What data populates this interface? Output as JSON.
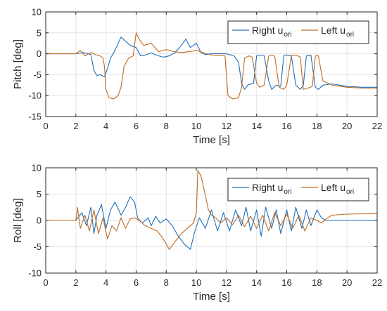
{
  "chart_data": [
    {
      "type": "line",
      "xlabel": "Time [s]",
      "ylabel": "Pitch [deg]",
      "xlim": [
        0,
        22
      ],
      "ylim": [
        -15,
        10
      ],
      "xticks": [
        0,
        2,
        4,
        6,
        8,
        10,
        12,
        14,
        16,
        18,
        20,
        22
      ],
      "yticks": [
        -15,
        -10,
        -5,
        0,
        5,
        10
      ],
      "grid": true,
      "legend": "top-right",
      "series": [
        {
          "name": "Right u_ori",
          "label_main": "Right u",
          "label_sub": "ori",
          "color": "#1f6fbf",
          "x": [
            0,
            2.0,
            2.5,
            3.0,
            3.2,
            3.4,
            3.6,
            3.9,
            4.1,
            4.3,
            4.6,
            4.8,
            5.0,
            5.3,
            5.6,
            6.0,
            6.3,
            6.6,
            7.0,
            7.4,
            7.8,
            8.2,
            8.6,
            9.0,
            9.3,
            9.6,
            10.0,
            10.3,
            10.6,
            11.0,
            11.5,
            12.0,
            12.2,
            12.5,
            12.8,
            13.0,
            13.2,
            13.4,
            13.8,
            14.0,
            14.2,
            14.5,
            14.8,
            15.0,
            15.3,
            15.6,
            15.8,
            16.0,
            16.3,
            16.6,
            16.9,
            17.1,
            17.3,
            17.6,
            17.9,
            18.1,
            18.4,
            19.0,
            20.0,
            21.0,
            22.0
          ],
          "y": [
            0,
            0,
            0.3,
            -0.2,
            -4.0,
            -5.2,
            -5.0,
            -5.5,
            -3.5,
            -1.0,
            0.8,
            2.5,
            4.0,
            3.0,
            2.0,
            1.5,
            -0.5,
            -0.3,
            0.2,
            -0.4,
            -0.8,
            -0.5,
            0.3,
            2.0,
            3.5,
            1.5,
            2.5,
            0.3,
            -0.2,
            0,
            0,
            0,
            -0.2,
            -0.5,
            -2.0,
            -7.0,
            -8.5,
            -7.5,
            -7.0,
            -0.5,
            -0.3,
            -0.4,
            -6.5,
            -8.5,
            -7.5,
            -7.8,
            -0.4,
            -0.3,
            -0.5,
            -7.5,
            -8.5,
            -7.5,
            -0.5,
            -0.3,
            -8.0,
            -8.5,
            -7.5,
            -7.2,
            -7.8,
            -8.0,
            -8.0
          ]
        },
        {
          "name": "Left u_ori",
          "label_main": "Left u",
          "label_sub": "ori",
          "color": "#c06a1f",
          "x": [
            0,
            2.0,
            2.3,
            2.6,
            3.0,
            3.3,
            3.6,
            3.8,
            3.9,
            4.0,
            4.2,
            4.5,
            4.8,
            5.0,
            5.2,
            5.5,
            5.8,
            6.0,
            6.2,
            6.5,
            7.0,
            7.5,
            8.0,
            8.5,
            9.0,
            9.5,
            10.0,
            10.5,
            11.0,
            11.5,
            11.9,
            12.1,
            12.4,
            12.8,
            13.0,
            13.2,
            13.5,
            13.7,
            14.0,
            14.2,
            14.5,
            14.8,
            15.0,
            15.2,
            15.5,
            15.8,
            16.0,
            16.3,
            16.6,
            16.9,
            17.1,
            17.4,
            17.7,
            17.9,
            18.1,
            18.4,
            19.0,
            20.0,
            21.0,
            22.0
          ],
          "y": [
            0,
            0,
            0.8,
            -0.5,
            0.3,
            -0.2,
            -0.5,
            -1.0,
            -3.0,
            -8.5,
            -10.5,
            -10.8,
            -10.0,
            -8.0,
            -3.0,
            -1.0,
            -0.5,
            5.0,
            3.5,
            2.0,
            2.5,
            0.5,
            1.0,
            0.5,
            0.3,
            0.5,
            0.8,
            0.2,
            -0.3,
            -0.4,
            -0.5,
            -10.0,
            -10.8,
            -10.5,
            -8.0,
            -1.0,
            -0.5,
            -0.8,
            -7.0,
            -8.0,
            -7.5,
            -0.5,
            -0.3,
            -0.6,
            -8.0,
            -8.5,
            -7.5,
            -0.5,
            -0.3,
            -0.8,
            -8.5,
            -8.2,
            -7.8,
            -0.5,
            -0.5,
            -6.5,
            -7.5,
            -8.0,
            -8.2,
            -8.2
          ]
        }
      ]
    },
    {
      "type": "line",
      "xlabel": "Time [s]",
      "ylabel": "Roll [deg]",
      "xlim": [
        0,
        22
      ],
      "ylim": [
        -10,
        10
      ],
      "xticks": [
        0,
        2,
        4,
        6,
        8,
        10,
        12,
        14,
        16,
        18,
        20,
        22
      ],
      "yticks": [
        -10,
        -5,
        0,
        5,
        10
      ],
      "grid": true,
      "legend": "top-right",
      "series": [
        {
          "name": "Right u_ori",
          "label_main": "Right u",
          "label_sub": "ori",
          "color": "#1f6fbf",
          "x": [
            0,
            2.0,
            2.4,
            2.7,
            3.0,
            3.2,
            3.4,
            3.7,
            4.0,
            4.3,
            4.6,
            5.0,
            5.3,
            5.6,
            5.9,
            6.1,
            6.4,
            6.8,
            7.0,
            7.3,
            7.6,
            8.0,
            8.4,
            8.8,
            9.2,
            9.6,
            9.9,
            10.2,
            10.6,
            11.0,
            11.4,
            11.8,
            12.2,
            12.6,
            13.0,
            13.3,
            13.6,
            14.0,
            14.3,
            14.6,
            15.0,
            15.3,
            15.6,
            16.0,
            16.3,
            16.6,
            17.0,
            17.3,
            17.6,
            18.0,
            18.3,
            18.6,
            19.0,
            20.0,
            22.0
          ],
          "y": [
            0,
            0,
            1.5,
            -1.0,
            2.5,
            -2.5,
            1.0,
            3.0,
            -1.5,
            2.0,
            3.5,
            1.0,
            2.5,
            4.5,
            3.5,
            0.5,
            -0.5,
            0.5,
            -1.0,
            0.8,
            -0.5,
            0.3,
            -1.0,
            -3.0,
            -4.5,
            -5.5,
            -2.0,
            0.5,
            -1.5,
            2.0,
            -2.0,
            1.5,
            -2.0,
            2.0,
            -1.0,
            2.5,
            -2.0,
            2.0,
            -3.0,
            2.5,
            -1.5,
            2.0,
            -2.5,
            2.0,
            -2.0,
            2.5,
            -1.5,
            2.0,
            -1.0,
            2.0,
            0.5,
            0,
            0,
            0,
            0
          ]
        },
        {
          "name": "Left u_ori",
          "label_main": "Left u",
          "label_sub": "ori",
          "color": "#c06a1f",
          "x": [
            0,
            2.0,
            2.1,
            2.3,
            2.6,
            2.9,
            3.2,
            3.5,
            3.8,
            4.1,
            4.4,
            4.7,
            5.0,
            5.3,
            5.6,
            5.9,
            6.2,
            6.6,
            7.0,
            7.4,
            7.8,
            8.2,
            8.6,
            9.0,
            9.4,
            9.8,
            10.0,
            10.1,
            10.3,
            10.5,
            10.8,
            11.0,
            11.3,
            11.6,
            12.0,
            12.4,
            12.8,
            13.2,
            13.6,
            14.0,
            14.4,
            14.8,
            15.2,
            15.6,
            16.0,
            16.4,
            16.8,
            17.2,
            17.6,
            18.0,
            18.3,
            18.6,
            19.0,
            20.0,
            22.0
          ],
          "y": [
            0,
            0,
            2.5,
            -1.5,
            1.0,
            -2.0,
            2.0,
            -2.5,
            0.5,
            -3.5,
            -1.0,
            -2.0,
            0.5,
            -1.5,
            0.3,
            0.5,
            0,
            -1.0,
            -1.5,
            -2.0,
            -3.5,
            -5.5,
            -4.0,
            -2.5,
            -1.5,
            -0.5,
            1.5,
            9.5,
            8.5,
            6.0,
            2.0,
            1.0,
            0.5,
            -0.5,
            0.5,
            -0.8,
            1.0,
            -1.2,
            0.8,
            -1.5,
            1.0,
            -2.0,
            1.5,
            -1.0,
            1.2,
            -1.5,
            1.0,
            -2.0,
            0.5,
            0,
            -0.5,
            0.3,
            1.0,
            1.2,
            1.3
          ]
        }
      ]
    }
  ]
}
